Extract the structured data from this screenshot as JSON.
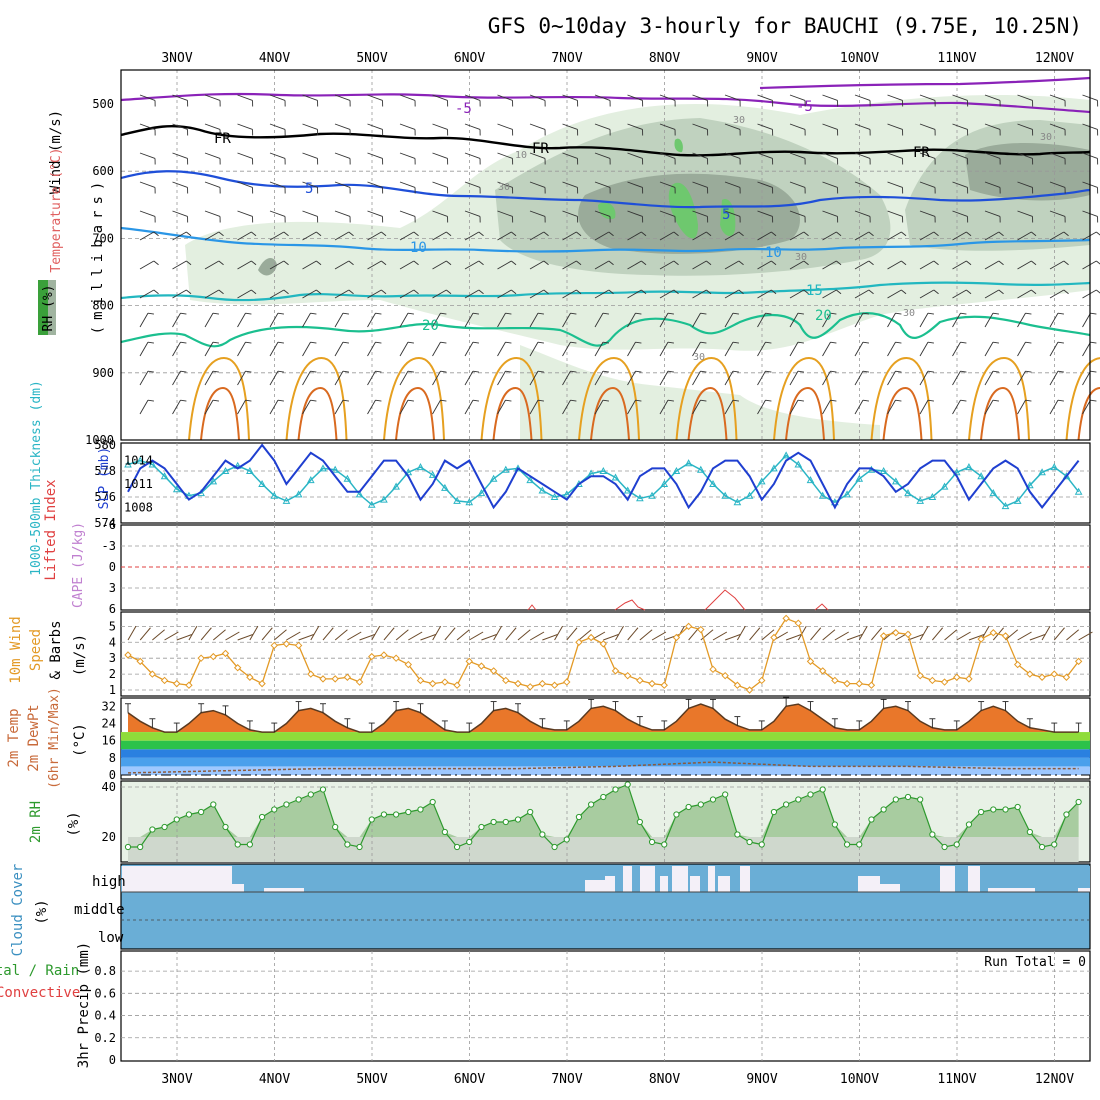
{
  "title": "GFS 0~10day 3-hourly for BAUCHI (9.75E, 10.25N)",
  "dates": [
    "3NOV",
    "4NOV",
    "5NOV",
    "6NOV",
    "7NOV",
    "8NOV",
    "9NOV",
    "10NOV",
    "11NOV",
    "12NOV"
  ],
  "colors": {
    "frame": "#000000",
    "grid": "#999999",
    "rh_light": "#e3efe0",
    "rh_mid": "#c0d2bf",
    "rh_dark": "#9aab9a",
    "rh_green": "#6ec86e",
    "t_minus5": "#8a22b8",
    "t_freeze": "#000000",
    "t_5": "#1f4fd8",
    "t_10": "#2a96e6",
    "t_15": "#22b7c0",
    "t_20": "#1bbf8f",
    "t_warm": "#e6a020",
    "t_hot": "#d96a20",
    "slp": "#1f3fd0",
    "thickness": "#2ab5c5",
    "lifted_index": "#e04040",
    "cape": "#c080d0",
    "wind10m": "#e39a26",
    "wind_barb": "#6b4a2a",
    "rh2m_line": "#2e9a2e",
    "rh2m_fill": "#a8cca0",
    "cloud": "#6aaed6",
    "cloud_clear": "#f4f0f8"
  },
  "panels": {
    "profile": {
      "ylabel_wind": "Wind (m/s)",
      "ylabel_temp": "Temperature (°C)",
      "ylabel_rh": "RH (%)",
      "ylabel_units": "(millibars)",
      "pressure_ticks": [
        "500",
        "600",
        "700",
        "800",
        "900",
        "1000"
      ],
      "contour_labels": [
        "-5",
        "-5",
        "FR",
        "FR",
        "FR",
        "5",
        "5",
        "10",
        "10",
        "15",
        "20",
        "20",
        "10",
        "30",
        "30",
        "30",
        "30",
        "30",
        "30"
      ]
    },
    "slp": {
      "ylabel_thick": "1000-500mb Thickness (dm)",
      "ylabel_slp": "SLP (mb)",
      "left_ticks": [
        "580",
        "578",
        "576",
        "574"
      ],
      "right_ticks": [
        "1014",
        "1011",
        "1008"
      ]
    },
    "li": {
      "ylabel_li": "Lifted Index",
      "ylabel_cape": "CAPE (J/kg)",
      "ticks": [
        "-6",
        "-3",
        "0",
        "3",
        "6"
      ]
    },
    "wind10": {
      "ylabel_1": "10m Wind",
      "ylabel_2": "Speed",
      "ylabel_3": "& Barbs",
      "ylabel_units": "(m/s)",
      "ticks": [
        "5",
        "4",
        "3",
        "2",
        "1"
      ]
    },
    "temp2m": {
      "ylabel_1": "2m Temp",
      "ylabel_2": "2m DewPt",
      "ylabel_3": "(6hr Min/Max)",
      "ylabel_units": "(°C)",
      "ticks": [
        "32",
        "24",
        "16",
        "8",
        "0"
      ]
    },
    "rh2m": {
      "ylabel": "2m RH",
      "ylabel_units": "(%)",
      "ticks": [
        "40",
        "20"
      ]
    },
    "cloud": {
      "ylabel": "Cloud Cover",
      "ylabel_units": "(%)",
      "levels": [
        "high",
        "middle",
        "low"
      ]
    },
    "precip": {
      "ylabel_1": "Total / Rain",
      "ylabel_2": "Convective",
      "ylabel_3": "3hr Precip (mm)",
      "run_total": "Run Total = 0",
      "ticks": [
        "0.8",
        "0.6",
        "0.4",
        "0.2",
        "0"
      ]
    }
  },
  "chart_data": [
    {
      "type": "line",
      "panel": "slp_thickness",
      "x_unit": "days from start (3-hourly, 0 = 02NOV 12Z)",
      "series": [
        {
          "name": "SLP (mb)",
          "x": [
            0,
            0.125,
            0.25,
            0.375,
            0.5,
            0.625,
            0.75,
            0.875,
            1,
            1.125,
            1.25,
            1.375,
            1.5,
            1.625,
            1.75,
            1.875,
            2,
            2.125,
            2.25,
            2.375,
            2.5,
            2.625,
            2.75,
            2.875,
            3,
            3.125,
            3.25,
            3.375,
            3.5,
            3.625,
            3.75,
            3.875,
            4,
            4.125,
            4.25,
            4.375,
            4.5,
            4.625,
            4.75,
            4.875,
            5,
            5.125,
            5.25,
            5.375,
            5.5,
            5.625,
            5.75,
            5.875,
            6,
            6.125,
            6.25,
            6.375,
            6.5,
            6.625,
            6.75,
            6.875,
            7,
            7.125,
            7.25,
            7.375,
            7.5,
            7.625,
            7.75,
            7.875,
            8,
            8.125,
            8.25,
            8.375,
            8.5,
            8.625,
            8.75,
            8.875,
            9,
            9.125,
            9.25,
            9.375,
            9.5,
            9.625,
            9.75
          ],
          "values": [
            1010,
            1013,
            1014,
            1013,
            1011,
            1009,
            1010,
            1012,
            1014,
            1013,
            1014,
            1016,
            1014,
            1011,
            1013,
            1015,
            1014,
            1012,
            1010,
            1010,
            1012,
            1014,
            1014,
            1012,
            1009,
            1011,
            1014,
            1013,
            1014,
            1011,
            1008,
            1010,
            1013,
            1012,
            1011,
            1010,
            1009,
            1011,
            1012,
            1012,
            1011,
            1009,
            1012,
            1013,
            1013,
            1011,
            1008,
            1010,
            1013,
            1014,
            1014,
            1012,
            1009,
            1011,
            1014,
            1015,
            1014,
            1011,
            1008,
            1011,
            1013,
            1013,
            1012,
            1010,
            1011,
            1013,
            1014,
            1014,
            1012,
            1009,
            1011,
            1013,
            1014,
            1013,
            1010,
            1008,
            1010,
            1012,
            1014
          ]
        },
        {
          "name": "1000-500mb Thickness (dm)",
          "x": [
            0,
            0.125,
            0.25,
            0.375,
            0.5,
            0.625,
            0.75,
            0.875,
            1,
            1.125,
            1.25,
            1.375,
            1.5,
            1.625,
            1.75,
            1.875,
            2,
            2.125,
            2.25,
            2.375,
            2.5,
            2.625,
            2.75,
            2.875,
            3,
            3.125,
            3.25,
            3.375,
            3.5,
            3.625,
            3.75,
            3.875,
            4,
            4.125,
            4.25,
            4.375,
            4.5,
            4.625,
            4.75,
            4.875,
            5,
            5.125,
            5.25,
            5.375,
            5.5,
            5.625,
            5.75,
            5.875,
            6,
            6.125,
            6.25,
            6.375,
            6.5,
            6.625,
            6.75,
            6.875,
            7,
            7.125,
            7.25,
            7.375,
            7.5,
            7.625,
            7.75,
            7.875,
            8,
            8.125,
            8.25,
            8.375,
            8.5,
            8.625,
            8.75,
            8.875,
            9,
            9.125,
            9.25,
            9.375,
            9.5,
            9.625,
            9.75
          ],
          "values": [
            578.5,
            578.8,
            578.5,
            577.6,
            576.6,
            576.1,
            576.3,
            577.2,
            578.0,
            578.4,
            578.0,
            577.0,
            576.1,
            575.7,
            576.2,
            577.3,
            578.2,
            578.1,
            577.4,
            576.2,
            575.4,
            575.8,
            576.8,
            577.9,
            578.3,
            577.7,
            576.7,
            575.7,
            575.6,
            576.3,
            577.4,
            578.1,
            578.2,
            577.3,
            576.5,
            576.0,
            576.2,
            577.0,
            577.8,
            578.0,
            577.5,
            576.5,
            575.9,
            576.1,
            577.0,
            578.0,
            578.6,
            578.1,
            577.0,
            576.1,
            575.6,
            576.1,
            577.2,
            578.2,
            579.2,
            578.5,
            577.3,
            576.1,
            575.6,
            576.2,
            577.4,
            578.1,
            578.0,
            577.2,
            576.3,
            575.7,
            576.0,
            576.8,
            577.9,
            578.3,
            577.6,
            576.3,
            575.3,
            575.7,
            576.9,
            577.9,
            578.3,
            577.6,
            576.4
          ]
        }
      ],
      "ylim_left": [
        574,
        580
      ],
      "ylim_right": [
        1006,
        1016
      ]
    },
    {
      "type": "line",
      "panel": "wind10m",
      "x_unit": "days from start (3-hourly)",
      "series": [
        {
          "name": "10m Wind Speed (m/s)",
          "x": [
            0,
            0.125,
            0.25,
            0.375,
            0.5,
            0.625,
            0.75,
            0.875,
            1,
            1.125,
            1.25,
            1.375,
            1.5,
            1.625,
            1.75,
            1.875,
            2,
            2.125,
            2.25,
            2.375,
            2.5,
            2.625,
            2.75,
            2.875,
            3,
            3.125,
            3.25,
            3.375,
            3.5,
            3.625,
            3.75,
            3.875,
            4,
            4.125,
            4.25,
            4.375,
            4.5,
            4.625,
            4.75,
            4.875,
            5,
            5.125,
            5.25,
            5.375,
            5.5,
            5.625,
            5.75,
            5.875,
            6,
            6.125,
            6.25,
            6.375,
            6.5,
            6.625,
            6.75,
            6.875,
            7,
            7.125,
            7.25,
            7.375,
            7.5,
            7.625,
            7.75,
            7.875,
            8,
            8.125,
            8.25,
            8.375,
            8.5,
            8.625,
            8.75,
            8.875,
            9,
            9.125,
            9.25,
            9.375,
            9.5,
            9.625,
            9.75
          ],
          "values": [
            3.2,
            2.8,
            2.0,
            1.6,
            1.4,
            1.3,
            3.0,
            3.1,
            3.3,
            2.4,
            1.8,
            1.4,
            3.8,
            3.9,
            3.8,
            2.0,
            1.7,
            1.7,
            1.8,
            1.5,
            3.1,
            3.2,
            3.0,
            2.6,
            1.6,
            1.4,
            1.5,
            1.3,
            2.8,
            2.5,
            2.2,
            1.6,
            1.4,
            1.2,
            1.4,
            1.3,
            1.5,
            4.0,
            4.3,
            3.9,
            2.2,
            1.9,
            1.6,
            1.4,
            1.3,
            4.3,
            5.0,
            4.8,
            2.3,
            1.9,
            1.3,
            1.0,
            1.6,
            4.3,
            5.5,
            5.2,
            2.8,
            2.2,
            1.6,
            1.4,
            1.4,
            1.3,
            4.4,
            4.6,
            4.5,
            1.9,
            1.6,
            1.5,
            1.8,
            1.7,
            4.2,
            4.6,
            4.4,
            2.6,
            2.0,
            1.8,
            2.0,
            1.8,
            2.8
          ]
        }
      ],
      "ylim": [
        1,
        6
      ]
    },
    {
      "type": "area",
      "panel": "temp2m",
      "x_unit": "days from start (3-hourly)",
      "series": [
        {
          "name": "2m Temp (°C)",
          "x": [
            0,
            0.125,
            0.25,
            0.375,
            0.5,
            0.625,
            0.75,
            0.875,
            1,
            1.125,
            1.25,
            1.375,
            1.5,
            1.625,
            1.75,
            1.875,
            2,
            2.125,
            2.25,
            2.375,
            2.5,
            2.625,
            2.75,
            2.875,
            3,
            3.125,
            3.25,
            3.375,
            3.5,
            3.625,
            3.75,
            3.875,
            4,
            4.125,
            4.25,
            4.375,
            4.5,
            4.625,
            4.75,
            4.875,
            5,
            5.125,
            5.25,
            5.375,
            5.5,
            5.625,
            5.75,
            5.875,
            6,
            6.125,
            6.25,
            6.375,
            6.5,
            6.625,
            6.75,
            6.875,
            7,
            7.125,
            7.25,
            7.375,
            7.5,
            7.625,
            7.75,
            7.875,
            8,
            8.125,
            8.25,
            8.375,
            8.5,
            8.625,
            8.75,
            8.875,
            9,
            9.125,
            9.25,
            9.375,
            9.5,
            9.625,
            9.75
          ],
          "values": [
            29,
            25,
            22,
            20,
            20,
            24,
            29,
            30,
            28,
            24,
            21,
            20,
            20,
            24,
            30,
            31,
            29,
            25,
            22,
            20,
            20,
            24,
            30,
            31,
            29,
            25,
            21,
            20,
            20,
            24,
            30,
            31,
            29,
            25,
            22,
            21,
            21,
            25,
            31,
            32,
            30,
            26,
            23,
            21,
            21,
            25,
            31,
            33,
            31,
            26,
            23,
            21,
            21,
            25,
            32,
            33,
            30,
            26,
            22,
            21,
            21,
            25,
            31,
            32,
            30,
            25,
            22,
            21,
            21,
            25,
            30,
            32,
            30,
            25,
            22,
            21,
            20,
            20,
            20
          ]
        },
        {
          "name": "2m DewPt (°C)",
          "x": [
            0,
            1,
            2,
            3,
            4,
            5,
            6,
            7,
            8,
            9,
            9.75
          ],
          "values": [
            1,
            2,
            3,
            3,
            3,
            4,
            6,
            4,
            4,
            3,
            3
          ]
        }
      ],
      "ylim": [
        0,
        34
      ]
    },
    {
      "type": "area",
      "panel": "rh2m",
      "x_unit": "days from start (3-hourly)",
      "series": [
        {
          "name": "2m RH (%)",
          "x": [
            0,
            0.125,
            0.25,
            0.375,
            0.5,
            0.625,
            0.75,
            0.875,
            1,
            1.125,
            1.25,
            1.375,
            1.5,
            1.625,
            1.75,
            1.875,
            2,
            2.125,
            2.25,
            2.375,
            2.5,
            2.625,
            2.75,
            2.875,
            3,
            3.125,
            3.25,
            3.375,
            3.5,
            3.625,
            3.75,
            3.875,
            4,
            4.125,
            4.25,
            4.375,
            4.5,
            4.625,
            4.75,
            4.875,
            5,
            5.125,
            5.25,
            5.375,
            5.5,
            5.625,
            5.75,
            5.875,
            6,
            6.125,
            6.25,
            6.375,
            6.5,
            6.625,
            6.75,
            6.875,
            7,
            7.125,
            7.25,
            7.375,
            7.5,
            7.625,
            7.75,
            7.875,
            8,
            8.125,
            8.25,
            8.375,
            8.5,
            8.625,
            8.75,
            8.875,
            9,
            9.125,
            9.25,
            9.375,
            9.5,
            9.625,
            9.75
          ],
          "values": [
            16,
            16,
            23,
            24,
            27,
            29,
            30,
            33,
            24,
            17,
            17,
            28,
            31,
            33,
            35,
            37,
            39,
            24,
            17,
            16,
            27,
            29,
            29,
            30,
            31,
            34,
            22,
            16,
            18,
            24,
            26,
            26,
            27,
            30,
            21,
            16,
            19,
            28,
            33,
            36,
            39,
            41,
            26,
            18,
            17,
            29,
            32,
            33,
            35,
            37,
            21,
            18,
            17,
            30,
            33,
            35,
            37,
            39,
            25,
            17,
            17,
            27,
            31,
            35,
            36,
            35,
            21,
            16,
            17,
            25,
            30,
            31,
            31,
            32,
            22,
            16,
            17,
            29,
            34
          ]
        }
      ],
      "ylim": [
        10,
        42
      ]
    },
    {
      "type": "bar",
      "panel": "precip3hr",
      "categories": [
        "3NOV",
        "4NOV",
        "5NOV",
        "6NOV",
        "7NOV",
        "8NOV",
        "9NOV",
        "10NOV",
        "11NOV",
        "12NOV"
      ],
      "values": [
        0,
        0,
        0,
        0,
        0,
        0,
        0,
        0,
        0,
        0
      ],
      "ylim": [
        0,
        0.9
      ]
    }
  ]
}
